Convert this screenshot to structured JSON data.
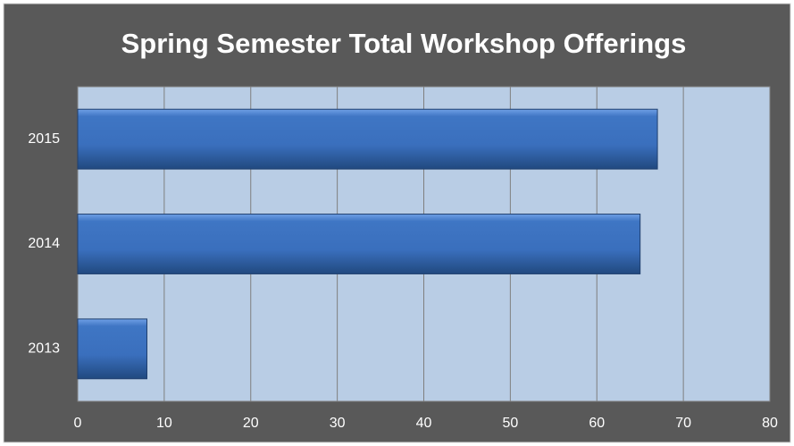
{
  "chart_data": {
    "type": "barh",
    "title": "Spring Semester Total Workshop Offerings",
    "categories": [
      "2013",
      "2014",
      "2015"
    ],
    "values": [
      8,
      65,
      67
    ],
    "color": "#3f76c4",
    "xlim": [
      0,
      80
    ],
    "xticks": [
      0,
      10,
      20,
      30,
      40,
      50,
      60,
      70,
      80
    ],
    "grid": true
  }
}
